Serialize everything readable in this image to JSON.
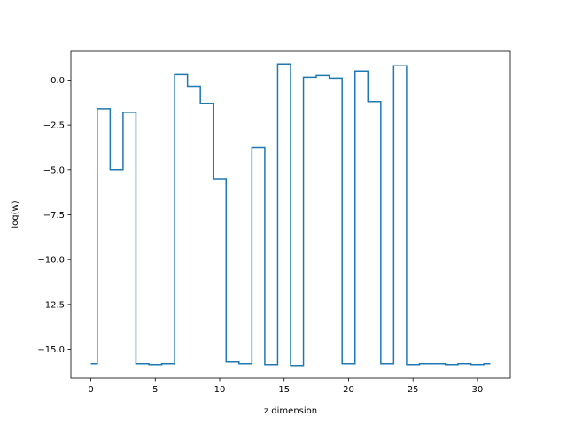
{
  "chart_data": {
    "type": "line",
    "drawstyle": "steps-mid",
    "title": "",
    "xlabel": "z dimension",
    "ylabel": "log(w)",
    "xlim": [
      -1.55,
      32.55
    ],
    "ylim": [
      -16.6,
      1.6
    ],
    "xticks": [
      0,
      5,
      10,
      15,
      20,
      25,
      30
    ],
    "xtick_labels": [
      "0",
      "5",
      "10",
      "15",
      "20",
      "25",
      "30"
    ],
    "yticks": [
      0.0,
      -2.5,
      -5.0,
      -7.5,
      -10.0,
      -12.5,
      -15.0
    ],
    "ytick_labels": [
      "0.0",
      "−2.5",
      "−5.0",
      "−7.5",
      "−10.0",
      "−12.5",
      "−15.0"
    ],
    "grid": false,
    "legend": "none",
    "series": [
      {
        "color": "#1f77b4",
        "x": [
          0,
          1,
          2,
          3,
          4,
          5,
          6,
          7,
          8,
          9,
          10,
          11,
          12,
          13,
          14,
          15,
          16,
          17,
          18,
          19,
          20,
          21,
          22,
          23,
          24,
          25,
          26,
          27,
          28,
          29,
          30,
          31
        ],
        "y": [
          -15.8,
          -1.6,
          -5.0,
          -1.8,
          -15.8,
          -15.85,
          -15.8,
          0.3,
          -0.35,
          -1.3,
          -5.5,
          -15.7,
          -15.8,
          -3.75,
          -15.85,
          0.9,
          -15.9,
          0.15,
          0.25,
          0.1,
          -15.8,
          0.5,
          -1.2,
          -15.8,
          0.8,
          -15.85,
          -15.8,
          -15.8,
          -15.85,
          -15.8,
          -15.85,
          -15.8
        ]
      }
    ]
  }
}
